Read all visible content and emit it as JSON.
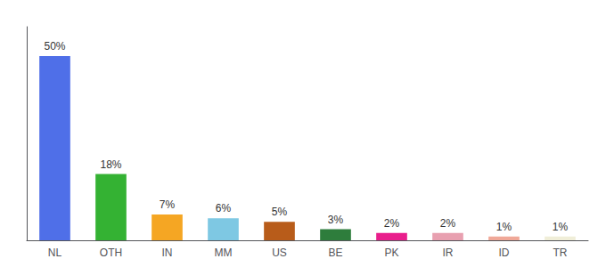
{
  "chart_data": {
    "type": "bar",
    "categories": [
      "NL",
      "OTH",
      "IN",
      "MM",
      "US",
      "BE",
      "PK",
      "IR",
      "ID",
      "TR"
    ],
    "values": [
      50,
      18,
      7,
      6,
      5,
      3,
      2,
      2,
      1,
      1
    ],
    "value_labels": [
      "50%",
      "18%",
      "7%",
      "6%",
      "5%",
      "3%",
      "2%",
      "2%",
      "1%",
      "1%"
    ],
    "colors": [
      "#4f6fe8",
      "#34b233",
      "#f5a623",
      "#7ec8e3",
      "#b85c1a",
      "#2e7d3c",
      "#e91e8c",
      "#e8a0b0",
      "#f0a898",
      "#f0eed8"
    ],
    "ylim": [
      0,
      58
    ],
    "data_labels": true,
    "tick_labels": "x",
    "grid": false
  }
}
